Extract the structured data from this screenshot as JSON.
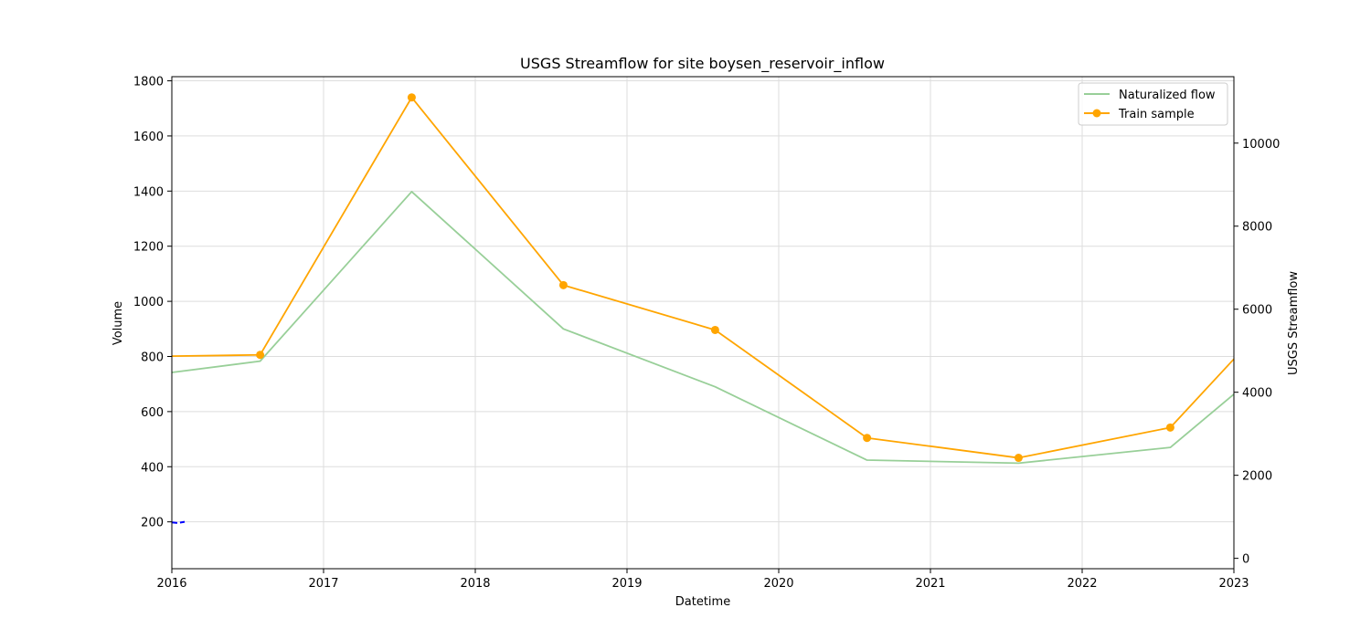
{
  "chart_data": {
    "type": "line",
    "title": "USGS Streamflow for site boysen_reservoir_inflow",
    "xlabel": "Datetime",
    "ylabel": "Volume",
    "y2label": "USGS Streamflow",
    "x_ticks": [
      "2016",
      "2017",
      "2018",
      "2019",
      "2020",
      "2021",
      "2022",
      "2023"
    ],
    "xlim": [
      "2016-01-01",
      "2023-01-01"
    ],
    "ylim": [
      30,
      1815
    ],
    "y_ticks": [
      200,
      400,
      600,
      800,
      1000,
      1200,
      1400,
      1600,
      1800
    ],
    "y2lim": [
      -250,
      11600
    ],
    "y2_ticks": [
      0,
      2000,
      4000,
      6000,
      8000,
      10000
    ],
    "grid": true,
    "legend_position": "top-right",
    "series": [
      {
        "name": "Naturalized flow",
        "axis": "left",
        "color": "#98cf98",
        "marker": "none",
        "points": [
          {
            "x": "2016-01-01",
            "y": 742
          },
          {
            "x": "2016-08-01",
            "y": 783
          },
          {
            "x": "2017-08-01",
            "y": 1398
          },
          {
            "x": "2018-08-01",
            "y": 900
          },
          {
            "x": "2019-08-01",
            "y": 690
          },
          {
            "x": "2020-08-01",
            "y": 424
          },
          {
            "x": "2021-08-01",
            "y": 413
          },
          {
            "x": "2022-08-01",
            "y": 470
          },
          {
            "x": "2023-01-01",
            "y": 663
          }
        ]
      },
      {
        "name": "Train sample",
        "axis": "right",
        "color": "#ffa500",
        "marker": "circle",
        "points": [
          {
            "x": "2016-01-01",
            "y": 4870
          },
          {
            "x": "2016-08-01",
            "y": 4900,
            "marker": true
          },
          {
            "x": "2017-08-01",
            "y": 11100,
            "marker": true
          },
          {
            "x": "2018-08-01",
            "y": 6580,
            "marker": true
          },
          {
            "x": "2019-08-01",
            "y": 5500,
            "marker": true
          },
          {
            "x": "2020-08-01",
            "y": 2900,
            "marker": true
          },
          {
            "x": "2021-08-01",
            "y": 2420,
            "marker": true
          },
          {
            "x": "2022-08-01",
            "y": 3150,
            "marker": true
          },
          {
            "x": "2023-01-01",
            "y": 4800
          }
        ]
      },
      {
        "name": "",
        "axis": "left",
        "color": "#0000ff",
        "style": "dashed",
        "marker": "none",
        "points": [
          {
            "x": "2016-01-01",
            "y": 198
          },
          {
            "x": "2016-01-15",
            "y": 196
          },
          {
            "x": "2016-02-01",
            "y": 200
          }
        ]
      }
    ]
  }
}
